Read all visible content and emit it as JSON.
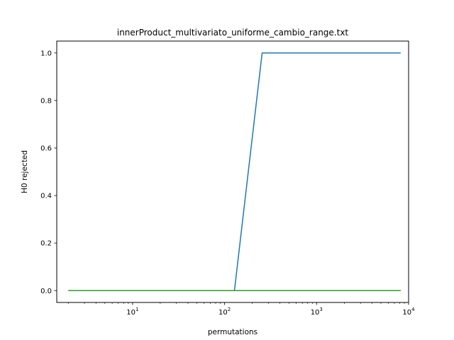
{
  "chart_data": {
    "type": "line",
    "title": "innerProduct_multivariato_uniforme_cambio_range.txt",
    "xlabel": "permutations",
    "ylabel": "H0 rejected",
    "xscale": "log",
    "xlim": [
      1.5,
      10000
    ],
    "ylim": [
      -0.05,
      1.05
    ],
    "grid": false,
    "legend": "none",
    "x_ticks": [
      {
        "value": 10,
        "base": "10",
        "exp": "1"
      },
      {
        "value": 100,
        "base": "10",
        "exp": "2"
      },
      {
        "value": 1000,
        "base": "10",
        "exp": "3"
      },
      {
        "value": 10000,
        "base": "10",
        "exp": "4"
      }
    ],
    "y_ticks": [
      {
        "value": 0.0,
        "label": "0.0"
      },
      {
        "value": 0.2,
        "label": "0.2"
      },
      {
        "value": 0.4,
        "label": "0.4"
      },
      {
        "value": 0.6,
        "label": "0.6"
      },
      {
        "value": 0.8,
        "label": "0.8"
      },
      {
        "value": 1.0,
        "label": "1.0"
      }
    ],
    "x": [
      2,
      4,
      8,
      16,
      32,
      64,
      128,
      256,
      512,
      1024,
      2048,
      4096,
      8192
    ],
    "series": [
      {
        "color": "#1f77b4",
        "values": [
          0,
          0,
          0,
          0,
          0,
          0,
          0,
          1,
          1,
          1,
          1,
          1,
          1
        ]
      },
      {
        "color": "#ff7f0e",
        "values": [
          0,
          0,
          0,
          0,
          0,
          0,
          0,
          0,
          0,
          0,
          0,
          0,
          0
        ]
      },
      {
        "color": "#2ca02c",
        "values": [
          0,
          0,
          0,
          0,
          0,
          0,
          0,
          0,
          0,
          0,
          0,
          0,
          0
        ]
      }
    ]
  }
}
